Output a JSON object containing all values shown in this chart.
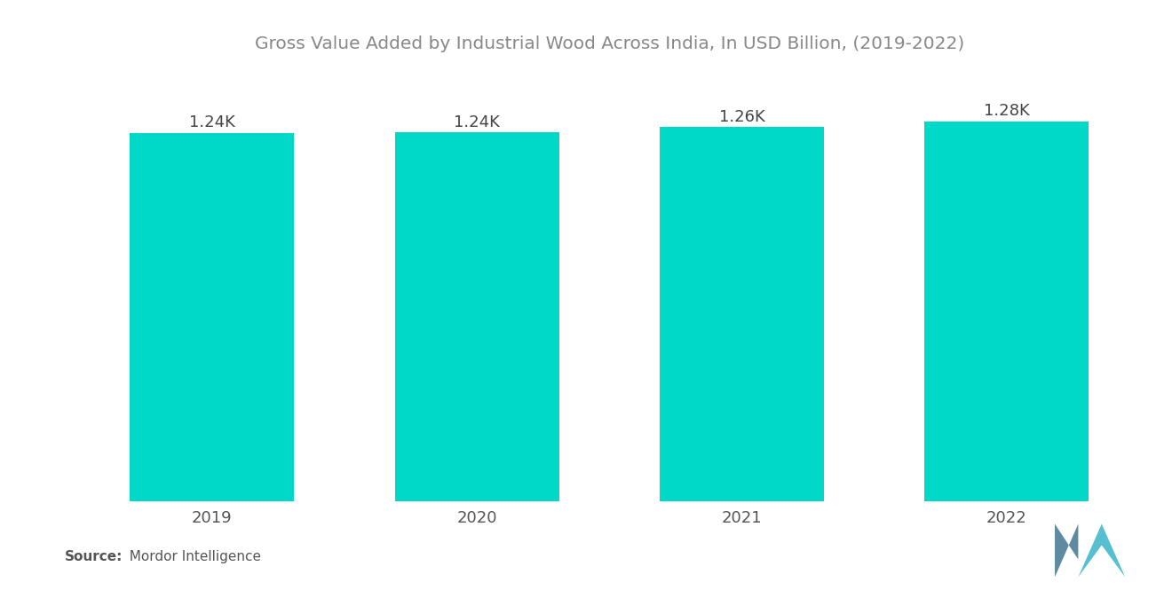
{
  "title": "Gross Value Added by Industrial Wood Across India, In USD Billion, (2019-2022)",
  "categories": [
    "2019",
    "2020",
    "2021",
    "2022"
  ],
  "values": [
    1240,
    1242,
    1260,
    1280
  ],
  "bar_labels": [
    "1.24K",
    "1.24K",
    "1.26K",
    "1.28K"
  ],
  "bar_color": "#00D9C8",
  "background_color": "#ffffff",
  "title_color": "#888888",
  "label_color": "#444444",
  "tick_color": "#555555",
  "source_bold": "Source:",
  "source_text": "  Mordor Intelligence",
  "ylim": [
    0,
    1450
  ],
  "title_fontsize": 14.5,
  "label_fontsize": 13,
  "tick_fontsize": 13,
  "source_fontsize": 11,
  "bar_width": 0.62
}
